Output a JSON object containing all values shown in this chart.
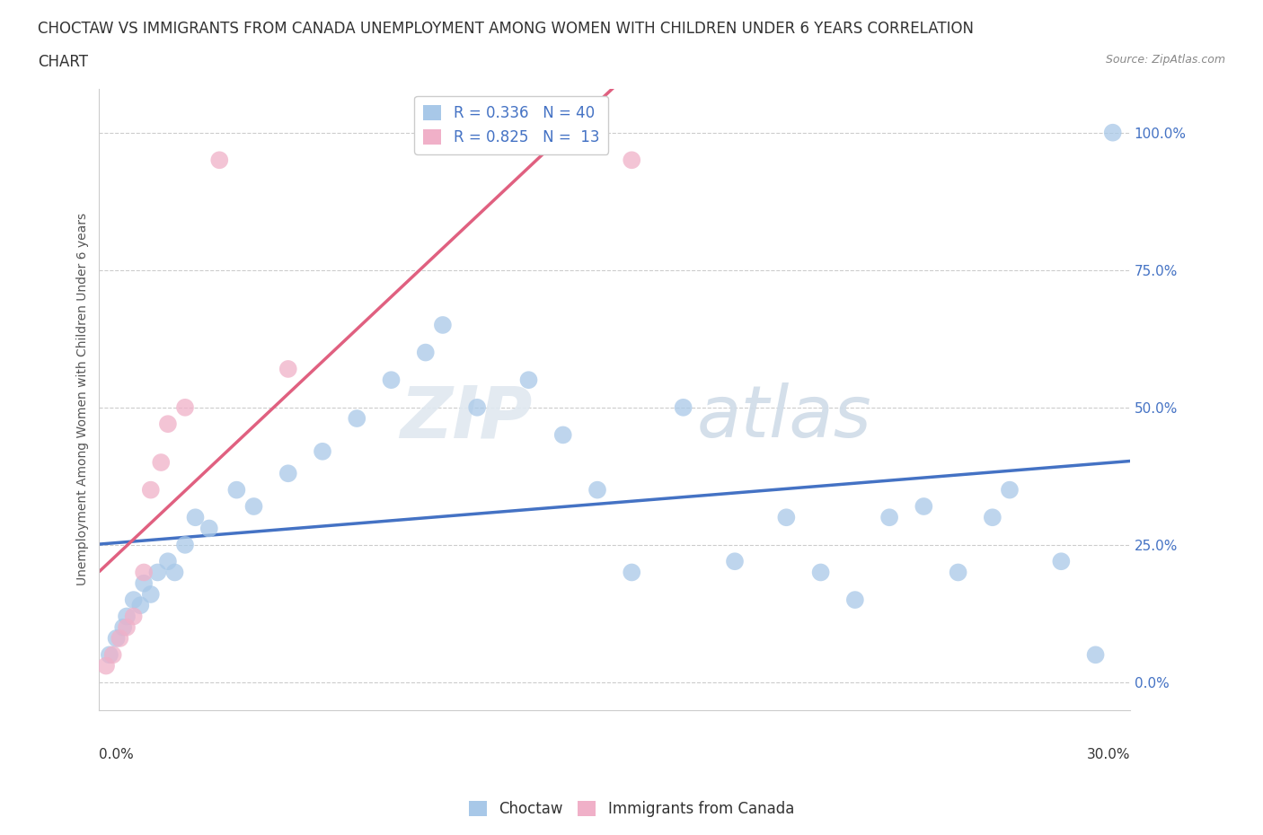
{
  "title_line1": "CHOCTAW VS IMMIGRANTS FROM CANADA UNEMPLOYMENT AMONG WOMEN WITH CHILDREN UNDER 6 YEARS CORRELATION",
  "title_line2": "CHART",
  "source_text": "Source: ZipAtlas.com",
  "xlabel_bottom_left": "0.0%",
  "xlabel_bottom_right": "30.0%",
  "ylabel": "Unemployment Among Women with Children Under 6 years",
  "ytick_labels": [
    "0.0%",
    "25.0%",
    "50.0%",
    "75.0%",
    "100.0%"
  ],
  "ytick_values": [
    0,
    25,
    50,
    75,
    100
  ],
  "xlim": [
    0,
    30
  ],
  "ylim": [
    -5,
    108
  ],
  "watermark_line1": "ZIP",
  "watermark_line2": "atlas",
  "legend_label_choctaw": "Choctaw",
  "legend_label_canada": "Immigrants from Canada",
  "blue_color": "#a8c8e8",
  "pink_color": "#f0b0c8",
  "blue_line_color": "#4472c4",
  "pink_line_color": "#e06080",
  "background_color": "#ffffff",
  "grid_color": "#cccccc",
  "choctaw_x": [
    0.3,
    0.5,
    0.7,
    0.8,
    1.0,
    1.2,
    1.3,
    1.5,
    1.7,
    2.0,
    2.2,
    2.5,
    2.8,
    3.2,
    4.0,
    4.5,
    5.5,
    6.5,
    7.5,
    8.5,
    9.5,
    10.0,
    11.0,
    12.5,
    13.5,
    14.5,
    15.5,
    17.0,
    18.5,
    20.0,
    21.0,
    22.0,
    23.0,
    24.0,
    25.0,
    26.0,
    26.5,
    28.0,
    29.0,
    29.5
  ],
  "choctaw_y": [
    5,
    8,
    10,
    12,
    15,
    14,
    18,
    16,
    20,
    22,
    20,
    25,
    30,
    28,
    35,
    32,
    38,
    42,
    48,
    55,
    60,
    65,
    50,
    55,
    45,
    35,
    20,
    50,
    22,
    30,
    20,
    15,
    30,
    32,
    20,
    30,
    35,
    22,
    5,
    100
  ],
  "canada_x": [
    0.2,
    0.4,
    0.6,
    0.8,
    1.0,
    1.3,
    1.5,
    1.8,
    2.0,
    2.5,
    3.5,
    5.5,
    15.5
  ],
  "canada_y": [
    3,
    5,
    8,
    10,
    12,
    20,
    35,
    40,
    47,
    50,
    95,
    57,
    95
  ]
}
